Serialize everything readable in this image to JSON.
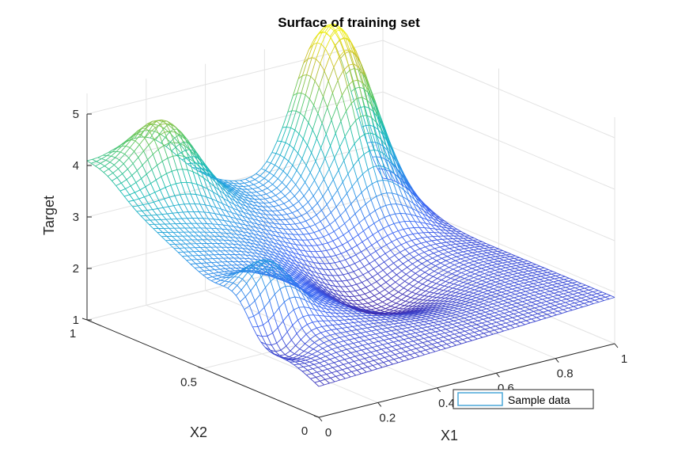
{
  "chart_data": {
    "type": "surface-mesh",
    "title": "Surface of training set",
    "xlabel": "X1",
    "ylabel": "X2",
    "zlabel": "Target",
    "xlim": [
      0,
      1
    ],
    "ylim": [
      0,
      1
    ],
    "zlim": [
      1,
      5
    ],
    "x_ticks": [
      "0",
      "0.2",
      "0.4",
      "0.6",
      "0.8",
      "1"
    ],
    "y_ticks": [
      "0",
      "0.5",
      "1"
    ],
    "z_ticks": [
      "1",
      "2",
      "3",
      "4",
      "5"
    ],
    "grid": true,
    "colormap": "parula",
    "legend": {
      "entries": [
        "Sample data"
      ],
      "placement": "bottom-right"
    },
    "corner_values": {
      "x0_y0": 1.6,
      "x1_y0": 1.9,
      "x0_y1": 4.0,
      "x1_y1": 1.9
    },
    "peak": {
      "x": 0.8,
      "y": 0.95,
      "z": 5.2
    }
  }
}
